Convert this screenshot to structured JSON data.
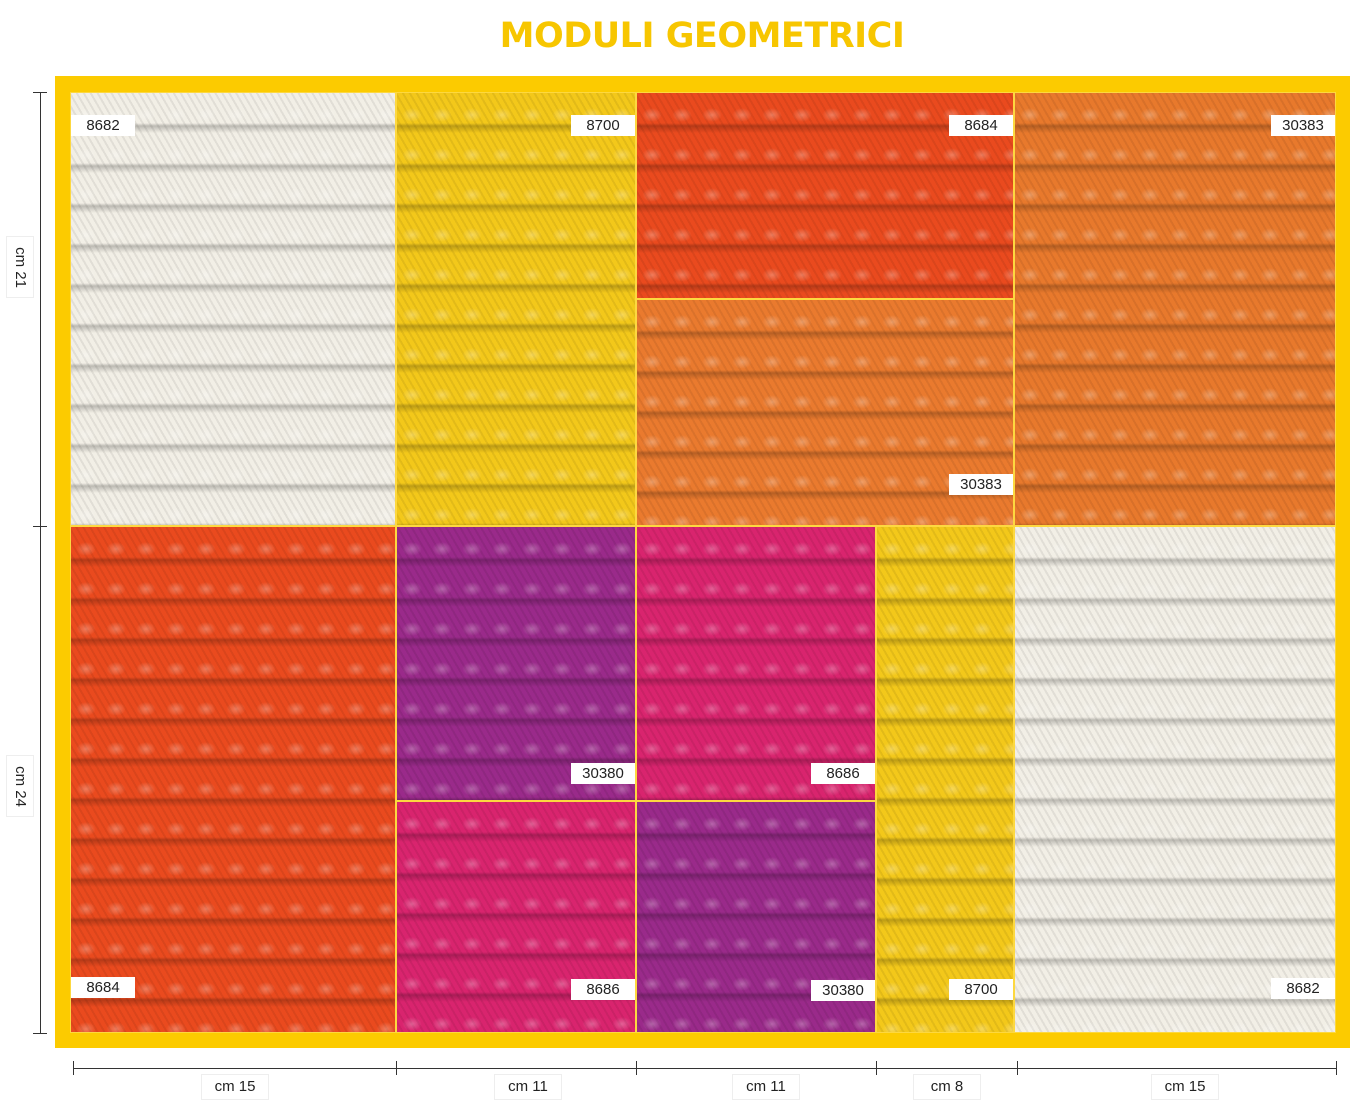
{
  "title": "MODULI GEOMETRICI",
  "accent_color": "#fccb00",
  "swatches": [
    {
      "code": "8682",
      "color": "#f2efe6"
    },
    {
      "code": "8700",
      "color": "#f3c81a"
    },
    {
      "code": "8684",
      "color": "#ea4a1e"
    },
    {
      "code": "30383",
      "color": "#ea7a2e"
    },
    {
      "code": "30383",
      "color": "#e8792c"
    },
    {
      "code": "8684",
      "color": "#ea4a1e"
    },
    {
      "code": "30380",
      "color": "#9a2a8a"
    },
    {
      "code": "8686",
      "color": "#d9246e"
    },
    {
      "code": "8686",
      "color": "#d9246e"
    },
    {
      "code": "30380",
      "color": "#9a2a8a"
    },
    {
      "code": "8700",
      "color": "#f3c81a"
    },
    {
      "code": "8682",
      "color": "#f2efe6"
    }
  ],
  "dimensions": {
    "vertical": [
      "cm 21",
      "cm 24"
    ],
    "horizontal": [
      "cm 15",
      "cm 11",
      "cm 11",
      "cm 8",
      "cm 15"
    ]
  }
}
